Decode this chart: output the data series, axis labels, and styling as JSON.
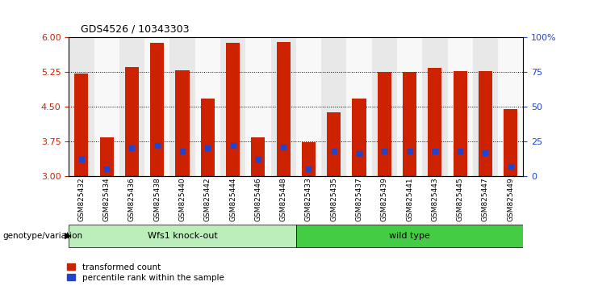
{
  "title": "GDS4526 / 10343303",
  "samples": [
    "GSM825432",
    "GSM825434",
    "GSM825436",
    "GSM825438",
    "GSM825440",
    "GSM825442",
    "GSM825444",
    "GSM825446",
    "GSM825448",
    "GSM825433",
    "GSM825435",
    "GSM825437",
    "GSM825439",
    "GSM825441",
    "GSM825443",
    "GSM825445",
    "GSM825447",
    "GSM825449"
  ],
  "groups": [
    "Wfs1 knock-out",
    "Wfs1 knock-out",
    "Wfs1 knock-out",
    "Wfs1 knock-out",
    "Wfs1 knock-out",
    "Wfs1 knock-out",
    "Wfs1 knock-out",
    "Wfs1 knock-out",
    "Wfs1 knock-out",
    "wild type",
    "wild type",
    "wild type",
    "wild type",
    "wild type",
    "wild type",
    "wild type",
    "wild type",
    "wild type"
  ],
  "transformed_count": [
    5.22,
    3.83,
    5.35,
    5.88,
    5.28,
    4.67,
    5.87,
    3.84,
    5.9,
    3.73,
    4.38,
    4.68,
    5.25,
    5.25,
    5.33,
    5.27,
    5.27,
    4.45
  ],
  "percentile_rank": [
    12,
    5,
    20,
    22,
    18,
    20,
    22,
    12,
    21,
    5,
    18,
    16,
    18,
    18,
    18,
    18,
    17,
    7
  ],
  "ymin": 3,
  "ymax": 6,
  "yticks_left": [
    3,
    3.75,
    4.5,
    5.25,
    6
  ],
  "yticks_right": [
    0,
    25,
    50,
    75,
    100
  ],
  "bar_color": "#CC2200",
  "blue_color": "#2244CC",
  "ko_color": "#BBEEBB",
  "wt_color": "#44CC44",
  "group_labels": [
    "Wfs1 knock-out",
    "wild type"
  ],
  "xlabel_left": "genotype/variation",
  "legend_labels": [
    "transformed count",
    "percentile rank within the sample"
  ],
  "tick_color_left": "#CC2200",
  "tick_color_right": "#2244CC"
}
